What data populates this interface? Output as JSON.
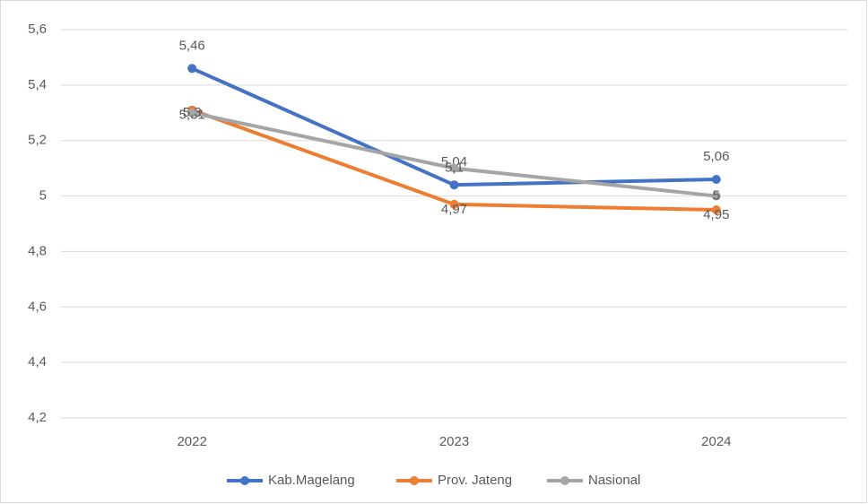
{
  "chart_data": {
    "type": "line",
    "categories": [
      "2022",
      "2023",
      "2024"
    ],
    "series": [
      {
        "name": "Kab.Magelang",
        "color": "#4472c4",
        "values": [
          5.46,
          5.04,
          5.06
        ],
        "value_labels": [
          "5,46",
          "5,04",
          "5,06"
        ]
      },
      {
        "name": "Prov. Jateng",
        "color": "#ed7d31",
        "values": [
          5.31,
          4.97,
          4.95
        ],
        "value_labels": [
          "5,31",
          "4,97",
          "4,95"
        ]
      },
      {
        "name": "Nasional",
        "color": "#a5a5a5",
        "values": [
          5.3,
          5.1,
          5
        ],
        "value_labels": [
          "5,3",
          "5,1",
          "5"
        ]
      }
    ],
    "ylim": [
      4.2,
      5.6
    ],
    "yticks": [
      {
        "value": 4.2,
        "label": "4,2"
      },
      {
        "value": 4.4,
        "label": "4,4"
      },
      {
        "value": 4.6,
        "label": "4,6"
      },
      {
        "value": 4.8,
        "label": "4,8"
      },
      5,
      {
        "value": 5.2,
        "label": "5,2"
      },
      {
        "value": 5.4,
        "label": "5,4"
      },
      {
        "value": 5.6,
        "label": "5,6"
      }
    ],
    "grid": true,
    "legend": "bottom"
  }
}
